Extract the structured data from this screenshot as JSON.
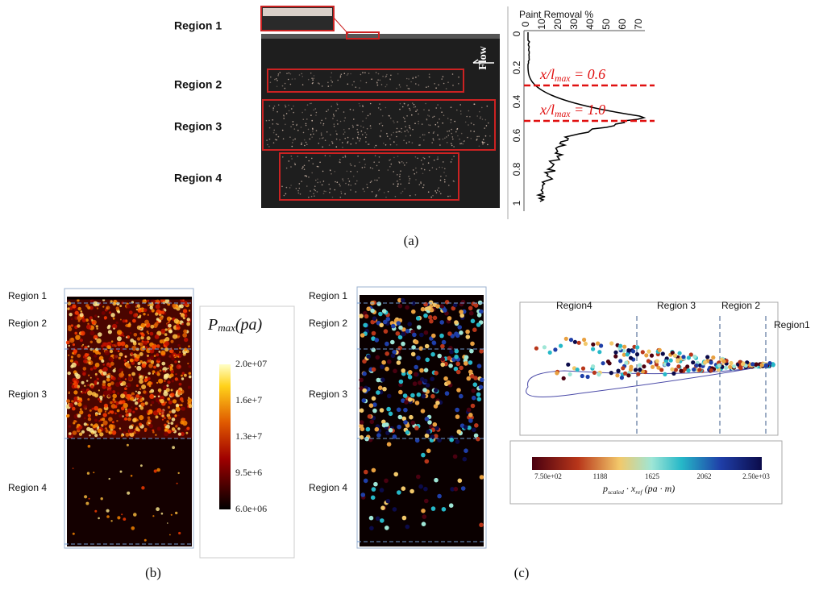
{
  "panel_a": {
    "regions": [
      "Region 1",
      "Region 2",
      "Region 3",
      "Region 4"
    ],
    "flow": "Flow",
    "profile": {
      "title": "Paint Removal %",
      "xticks": [
        "0",
        "10",
        "20",
        "30",
        "40",
        "50",
        "60",
        "70"
      ],
      "yticks": [
        "0",
        "0.2",
        "0.4",
        "0.6",
        "0.8",
        "1"
      ],
      "annotations": [
        {
          "base": "x/l",
          "sub": "max",
          "tail": " = 0.6"
        },
        {
          "base": "x/l",
          "sub": "max",
          "tail": " = 1.0"
        }
      ]
    },
    "caption": "(a)"
  },
  "panel_b": {
    "regions": [
      "Region 1",
      "Region 2",
      "Region 3",
      "Region 4"
    ],
    "colorbar": {
      "title": {
        "base": "P",
        "sub": "max",
        "tail": "(pa)"
      },
      "ticks": [
        "2.0e+07",
        "1.6e+7",
        "1.3e+7",
        "9.5e+6",
        "6.0e+06"
      ]
    },
    "caption": "(b)"
  },
  "panel_c": {
    "image_regions": [
      "Region 1",
      "Region 2",
      "Region 3",
      "Region 4"
    ],
    "plot_regions": [
      "Region4",
      "Region 3",
      "Region 2",
      "Region1"
    ],
    "colorbar": {
      "title": {
        "base": "p",
        "sub": "scaled",
        "tail": " · x",
        "sub2": "ref",
        "tail2": " (pa · m)"
      },
      "ticks": [
        "7.50e+02",
        "1188",
        "1625",
        "2062",
        "2.50e+03"
      ]
    },
    "caption": "(c)"
  }
}
